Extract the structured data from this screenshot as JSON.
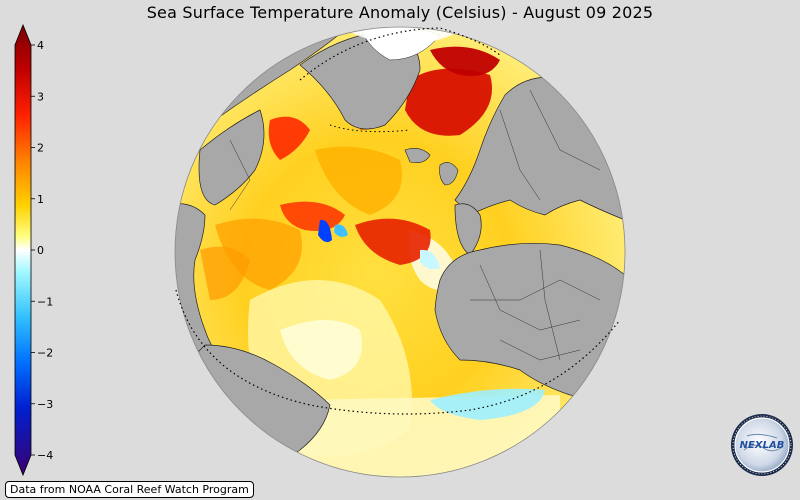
{
  "title": "Sea Surface Temperature Anomaly (Celsius) - August 09 2025",
  "colorbar": {
    "ticks": [
      "4",
      "3",
      "2",
      "1",
      "0",
      "−1",
      "−2",
      "−3",
      "−4"
    ],
    "colors": [
      "#3a006f",
      "#0030c8",
      "#0080ff",
      "#40d8ff",
      "#ffffff",
      "#ffff40",
      "#ffb000",
      "#ff5000",
      "#d00000",
      "#7a0000"
    ]
  },
  "map": {
    "ocean_color": "#ffe060",
    "land_color": "#a8a8a8",
    "background": "#dcdcdc"
  },
  "credit": "Data from NOAA Coral Reef Watch Program",
  "logo": {
    "text": "NEXLAB",
    "icon": "globe-logo"
  }
}
